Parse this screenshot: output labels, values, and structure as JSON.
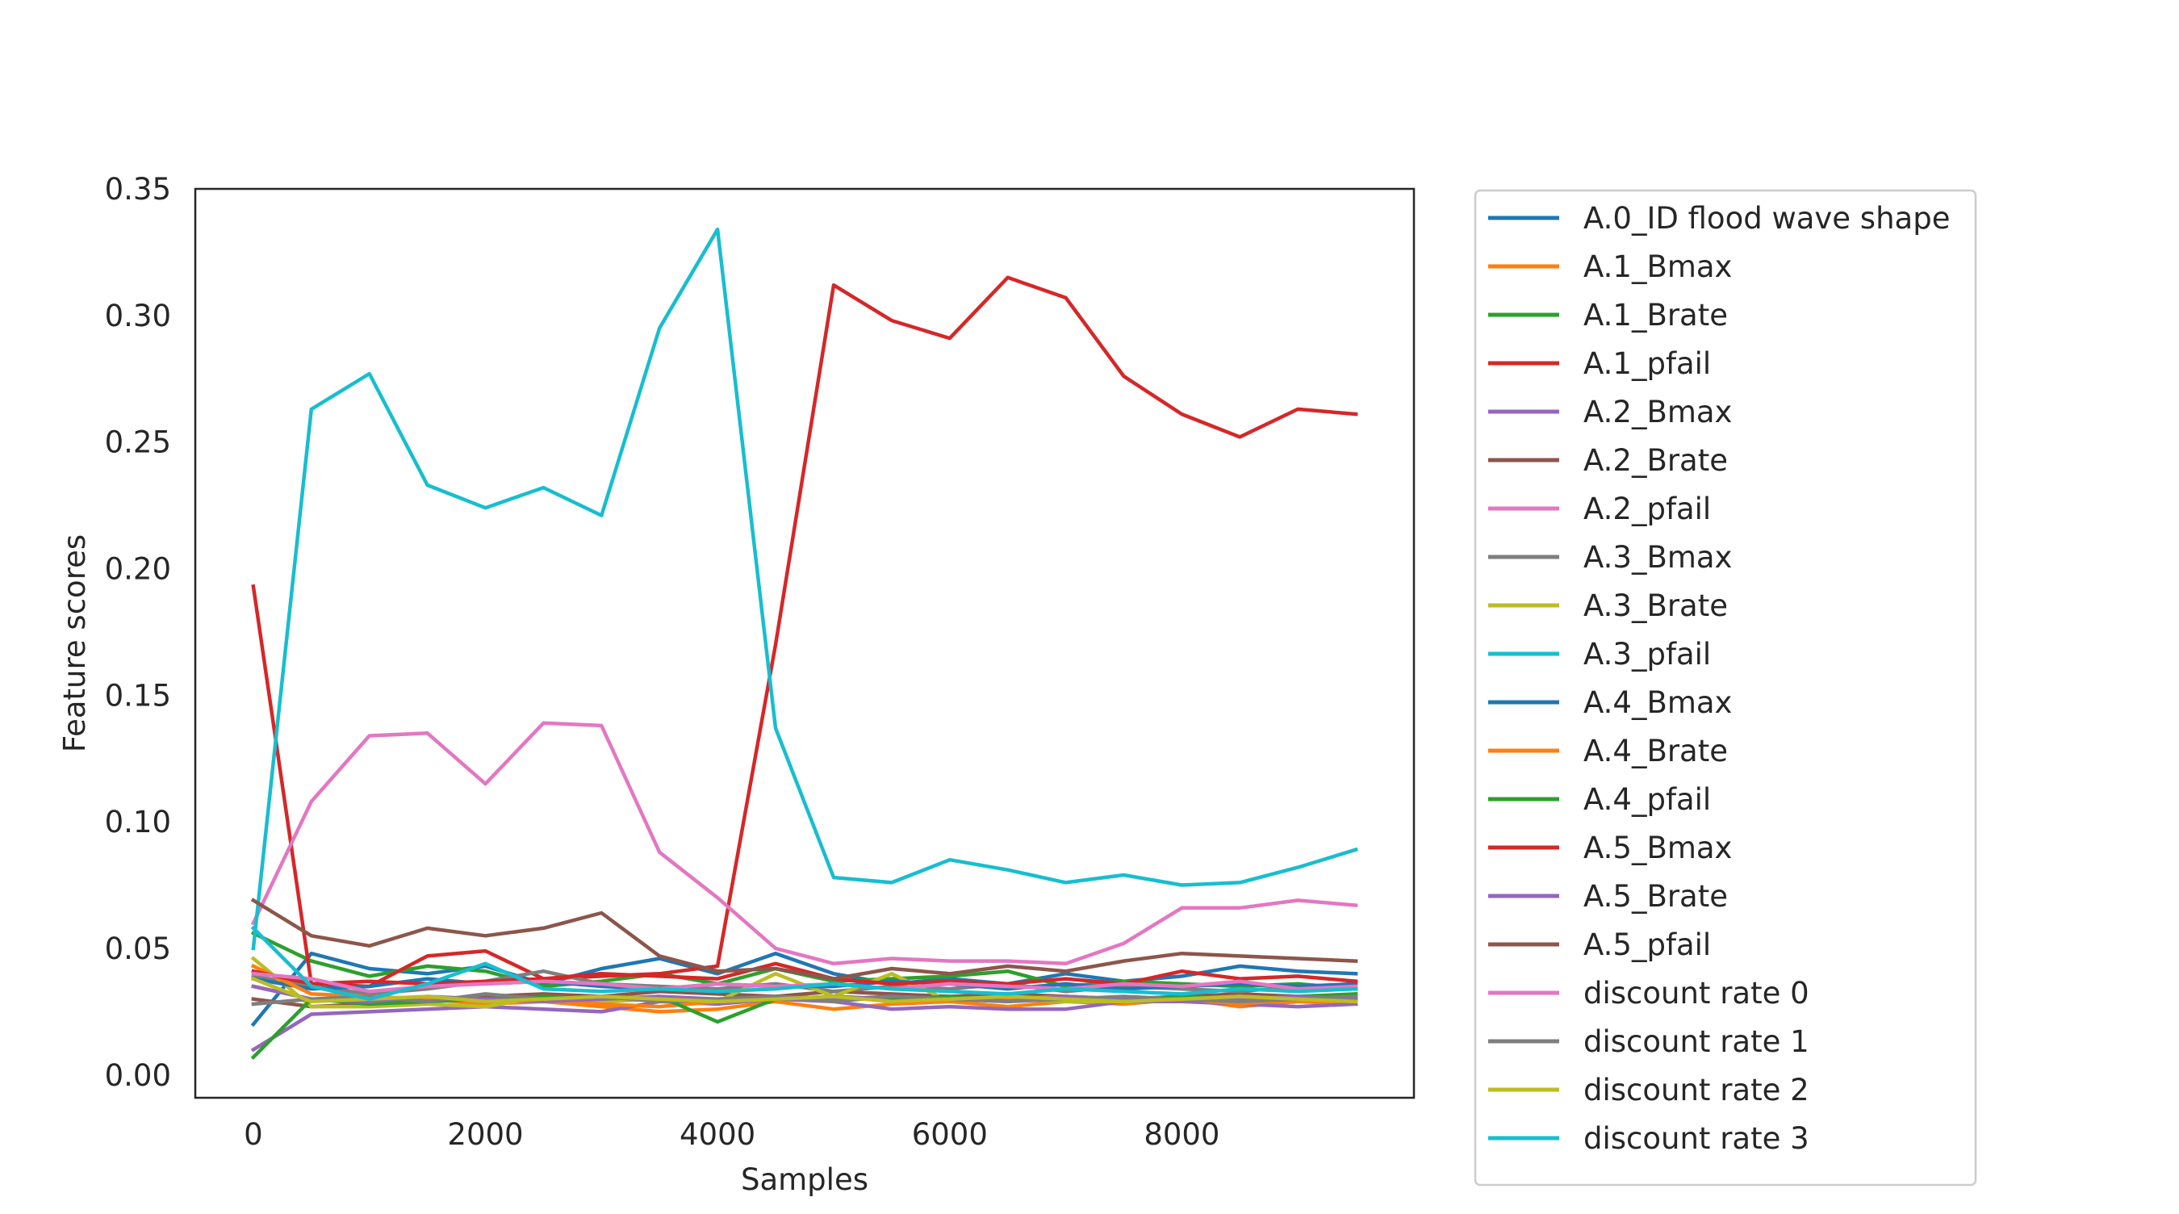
{
  "chart_data": {
    "type": "line",
    "xlabel": "Samples",
    "ylabel": "Feature scores",
    "xlim": [
      -500,
      10000
    ],
    "ylim": [
      -0.009,
      0.35
    ],
    "xticks": [
      {
        "value": 0,
        "label": "0"
      },
      {
        "value": 2000,
        "label": "2000"
      },
      {
        "value": 4000,
        "label": "4000"
      },
      {
        "value": 6000,
        "label": "6000"
      },
      {
        "value": 8000,
        "label": "8000"
      }
    ],
    "yticks": [
      {
        "value": 0.0,
        "label": "0.00"
      },
      {
        "value": 0.05,
        "label": "0.05"
      },
      {
        "value": 0.1,
        "label": "0.10"
      },
      {
        "value": 0.15,
        "label": "0.15"
      },
      {
        "value": 0.2,
        "label": "0.20"
      },
      {
        "value": 0.25,
        "label": "0.25"
      },
      {
        "value": 0.3,
        "label": "0.30"
      },
      {
        "value": 0.35,
        "label": "0.35"
      }
    ],
    "grid": false,
    "legend_position": "outside-right",
    "x": [
      0,
      500,
      1000,
      1500,
      2000,
      2500,
      3000,
      3500,
      4000,
      4500,
      5000,
      5500,
      6000,
      6500,
      7000,
      7500,
      8000,
      8500,
      9000,
      9500
    ],
    "series": [
      {
        "name": "A.0_ID flood wave shape",
        "color": "#1f77b4",
        "values": [
          0.02,
          0.048,
          0.042,
          0.04,
          0.043,
          0.036,
          0.042,
          0.046,
          0.04,
          0.048,
          0.04,
          0.036,
          0.038,
          0.036,
          0.04,
          0.037,
          0.039,
          0.043,
          0.041,
          0.04
        ]
      },
      {
        "name": "A.1_Bmax",
        "color": "#ff7f0e",
        "values": [
          0.035,
          0.03,
          0.029,
          0.03,
          0.028,
          0.029,
          0.027,
          0.025,
          0.026,
          0.029,
          0.026,
          0.028,
          0.029,
          0.027,
          0.029,
          0.028,
          0.03,
          0.027,
          0.029,
          0.028
        ]
      },
      {
        "name": "A.1_Brate",
        "color": "#2ca02c",
        "values": [
          0.056,
          0.045,
          0.039,
          0.043,
          0.041,
          0.035,
          0.037,
          0.04,
          0.036,
          0.042,
          0.037,
          0.038,
          0.039,
          0.041,
          0.035,
          0.037,
          0.036,
          0.035,
          0.036,
          0.034
        ]
      },
      {
        "name": "A.1_pfail",
        "color": "#d62728",
        "values": [
          0.193,
          0.036,
          0.035,
          0.047,
          0.049,
          0.038,
          0.039,
          0.04,
          0.043,
          0.17,
          0.312,
          0.298,
          0.291,
          0.315,
          0.307,
          0.276,
          0.261,
          0.252,
          0.263,
          0.261
        ]
      },
      {
        "name": "A.2_Bmax",
        "color": "#9467bd",
        "values": [
          0.01,
          0.024,
          0.025,
          0.026,
          0.027,
          0.026,
          0.025,
          0.029,
          0.028,
          0.03,
          0.029,
          0.026,
          0.027,
          0.026,
          0.026,
          0.029,
          0.029,
          0.028,
          0.027,
          0.028
        ]
      },
      {
        "name": "A.2_Brate",
        "color": "#8c564b",
        "values": [
          0.03,
          0.027,
          0.028,
          0.03,
          0.031,
          0.032,
          0.031,
          0.033,
          0.032,
          0.031,
          0.033,
          0.032,
          0.031,
          0.032,
          0.031,
          0.03,
          0.031,
          0.032,
          0.031,
          0.03
        ]
      },
      {
        "name": "A.2_pfail",
        "color": "#e377c2",
        "values": [
          0.06,
          0.108,
          0.134,
          0.135,
          0.115,
          0.139,
          0.138,
          0.088,
          0.07,
          0.05,
          0.044,
          0.046,
          0.045,
          0.045,
          0.044,
          0.052,
          0.066,
          0.066,
          0.069,
          0.067
        ]
      },
      {
        "name": "A.3_Bmax",
        "color": "#7f7f7f",
        "values": [
          0.039,
          0.035,
          0.032,
          0.034,
          0.037,
          0.041,
          0.036,
          0.035,
          0.034,
          0.036,
          0.033,
          0.035,
          0.034,
          0.036,
          0.033,
          0.035,
          0.034,
          0.033,
          0.035,
          0.034
        ]
      },
      {
        "name": "A.3_Brate",
        "color": "#bcbd22",
        "values": [
          0.046,
          0.027,
          0.027,
          0.028,
          0.027,
          0.031,
          0.029,
          0.03,
          0.029,
          0.04,
          0.031,
          0.04,
          0.029,
          0.03,
          0.029,
          0.029,
          0.03,
          0.031,
          0.03,
          0.031
        ]
      },
      {
        "name": "A.3_pfail",
        "color": "#17becf",
        "values": [
          0.05,
          0.263,
          0.277,
          0.233,
          0.224,
          0.232,
          0.221,
          0.295,
          0.334,
          0.137,
          0.078,
          0.076,
          0.085,
          0.081,
          0.076,
          0.079,
          0.075,
          0.076,
          0.082,
          0.089
        ]
      },
      {
        "name": "A.4_Bmax",
        "color": "#1f77b4",
        "values": [
          0.038,
          0.034,
          0.035,
          0.038,
          0.036,
          0.037,
          0.035,
          0.034,
          0.036,
          0.035,
          0.035,
          0.037,
          0.036,
          0.034,
          0.036,
          0.034,
          0.035,
          0.036,
          0.035,
          0.036
        ]
      },
      {
        "name": "A.4_Brate",
        "color": "#ff7f0e",
        "values": [
          0.043,
          0.032,
          0.031,
          0.03,
          0.029,
          0.03,
          0.028,
          0.027,
          0.029,
          0.03,
          0.031,
          0.03,
          0.029,
          0.03,
          0.031,
          0.029,
          0.03,
          0.028,
          0.03,
          0.029
        ]
      },
      {
        "name": "A.4_pfail",
        "color": "#2ca02c",
        "values": [
          0.007,
          0.03,
          0.028,
          0.029,
          0.03,
          0.031,
          0.03,
          0.031,
          0.021,
          0.03,
          0.031,
          0.03,
          0.031,
          0.029,
          0.031,
          0.03,
          0.031,
          0.03,
          0.031,
          0.032
        ]
      },
      {
        "name": "A.5_Bmax",
        "color": "#d62728",
        "values": [
          0.041,
          0.036,
          0.037,
          0.036,
          0.037,
          0.038,
          0.04,
          0.039,
          0.038,
          0.044,
          0.038,
          0.036,
          0.037,
          0.036,
          0.038,
          0.036,
          0.041,
          0.038,
          0.039,
          0.037
        ]
      },
      {
        "name": "A.5_Brate",
        "color": "#9467bd",
        "values": [
          0.035,
          0.03,
          0.029,
          0.031,
          0.03,
          0.029,
          0.03,
          0.031,
          0.03,
          0.031,
          0.03,
          0.031,
          0.03,
          0.029,
          0.031,
          0.03,
          0.029,
          0.03,
          0.031,
          0.03
        ]
      },
      {
        "name": "A.5_pfail",
        "color": "#8c564b",
        "values": [
          0.069,
          0.055,
          0.051,
          0.058,
          0.055,
          0.058,
          0.064,
          0.047,
          0.041,
          0.042,
          0.038,
          0.042,
          0.04,
          0.043,
          0.041,
          0.045,
          0.048,
          0.047,
          0.046,
          0.045
        ]
      },
      {
        "name": "discount rate 0",
        "color": "#e377c2",
        "values": [
          0.04,
          0.038,
          0.033,
          0.035,
          0.036,
          0.037,
          0.036,
          0.034,
          0.036,
          0.035,
          0.036,
          0.034,
          0.036,
          0.035,
          0.034,
          0.036,
          0.035,
          0.037,
          0.034,
          0.035
        ]
      },
      {
        "name": "discount rate 1",
        "color": "#7f7f7f",
        "values": [
          0.028,
          0.03,
          0.031,
          0.029,
          0.032,
          0.03,
          0.031,
          0.029,
          0.03,
          0.031,
          0.029,
          0.031,
          0.03,
          0.029,
          0.03,
          0.031,
          0.03,
          0.029,
          0.03,
          0.031
        ]
      },
      {
        "name": "discount rate 2",
        "color": "#bcbd22",
        "values": [
          0.038,
          0.029,
          0.03,
          0.031,
          0.029,
          0.03,
          0.031,
          0.03,
          0.029,
          0.03,
          0.031,
          0.029,
          0.03,
          0.031,
          0.03,
          0.029,
          0.03,
          0.031,
          0.03,
          0.029
        ]
      },
      {
        "name": "discount rate 3",
        "color": "#17becf",
        "values": [
          0.058,
          0.035,
          0.03,
          0.036,
          0.044,
          0.034,
          0.033,
          0.034,
          0.033,
          0.034,
          0.036,
          0.034,
          0.033,
          0.032,
          0.034,
          0.033,
          0.032,
          0.034,
          0.033,
          0.034
        ]
      }
    ]
  }
}
